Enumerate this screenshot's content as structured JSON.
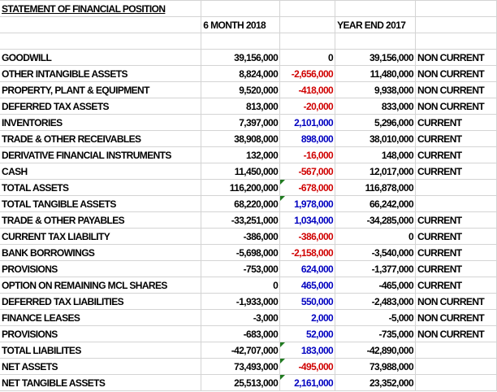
{
  "title": "STATEMENT OF FINANCIAL POSITION",
  "headers": {
    "col_b": "6 MONTH 2018",
    "col_d": "YEAR END 2017"
  },
  "colors": {
    "negative": "#d00000",
    "positive": "#0000c0",
    "comment_marker": "#1f7a1f"
  },
  "rows": [
    {
      "label": "GOODWILL",
      "m2018": "39,156,000",
      "change": "0",
      "change_color": "",
      "y2017": "39,156,000",
      "class": "NON CURRENT",
      "flag": false
    },
    {
      "label": "OTHER INTANGIBLE ASSETS",
      "m2018": "8,824,000",
      "change": "-2,656,000",
      "change_color": "negative",
      "y2017": "11,480,000",
      "class": "NON CURRENT",
      "flag": false
    },
    {
      "label": "PROPERTY, PLANT & EQUIPMENT",
      "m2018": "9,520,000",
      "change": "-418,000",
      "change_color": "negative",
      "y2017": "9,938,000",
      "class": "NON CURRENT",
      "flag": false
    },
    {
      "label": "DEFERRED TAX ASSETS",
      "m2018": "813,000",
      "change": "-20,000",
      "change_color": "negative",
      "y2017": "833,000",
      "class": "NON CURRENT",
      "flag": false
    },
    {
      "label": "INVENTORIES",
      "m2018": "7,397,000",
      "change": "2,101,000",
      "change_color": "positive",
      "y2017": "5,296,000",
      "class": "CURRENT",
      "flag": false
    },
    {
      "label": "TRADE & OTHER RECEIVABLES",
      "m2018": "38,908,000",
      "change": "898,000",
      "change_color": "positive",
      "y2017": "38,010,000",
      "class": "CURRENT",
      "flag": false
    },
    {
      "label": "DERIVATIVE FINANCIAL INSTRUMENTS",
      "m2018": "132,000",
      "change": "-16,000",
      "change_color": "negative",
      "y2017": "148,000",
      "class": "CURRENT",
      "flag": false
    },
    {
      "label": "CASH",
      "m2018": "11,450,000",
      "change": "-567,000",
      "change_color": "negative",
      "y2017": "12,017,000",
      "class": "CURRENT",
      "flag": false
    },
    {
      "label": "TOTAL ASSETS",
      "m2018": "116,200,000",
      "change": "-678,000",
      "change_color": "negative",
      "y2017": "116,878,000",
      "class": "",
      "flag": true
    },
    {
      "label": "TOTAL TANGIBLE ASSETS",
      "m2018": "68,220,000",
      "change": "1,978,000",
      "change_color": "positive",
      "y2017": "66,242,000",
      "class": "",
      "flag": true
    },
    {
      "label": "TRADE & OTHER PAYABLES",
      "m2018": "-33,251,000",
      "change": "1,034,000",
      "change_color": "positive",
      "y2017": "-34,285,000",
      "class": "CURRENT",
      "flag": false
    },
    {
      "label": "CURRENT TAX LIABILITY",
      "m2018": "-386,000",
      "change": "-386,000",
      "change_color": "negative",
      "y2017": "0",
      "class": "CURRENT",
      "flag": false
    },
    {
      "label": "BANK BORROWINGS",
      "m2018": "-5,698,000",
      "change": "-2,158,000",
      "change_color": "negative",
      "y2017": "-3,540,000",
      "class": "CURRENT",
      "flag": false
    },
    {
      "label": "PROVISIONS",
      "m2018": "-753,000",
      "change": "624,000",
      "change_color": "positive",
      "y2017": "-1,377,000",
      "class": "CURRENT",
      "flag": false
    },
    {
      "label": "OPTION ON REMAINING MCL SHARES",
      "m2018": "0",
      "change": "465,000",
      "change_color": "positive",
      "y2017": "-465,000",
      "class": "CURRENT",
      "flag": false
    },
    {
      "label": "DEFERRED TAX LIABILITIES",
      "m2018": "-1,933,000",
      "change": "550,000",
      "change_color": "positive",
      "y2017": "-2,483,000",
      "class": "NON CURRENT",
      "flag": false
    },
    {
      "label": "FINANCE LEASES",
      "m2018": "-3,000",
      "change": "2,000",
      "change_color": "positive",
      "y2017": "-5,000",
      "class": "NON CURRENT",
      "flag": false
    },
    {
      "label": "PROVISIONS",
      "m2018": "-683,000",
      "change": "52,000",
      "change_color": "positive",
      "y2017": "-735,000",
      "class": "NON CURRENT",
      "flag": false
    },
    {
      "label": "TOTAL LIABILITES",
      "m2018": "-42,707,000",
      "change": "183,000",
      "change_color": "positive",
      "y2017": "-42,890,000",
      "class": "",
      "flag": true
    },
    {
      "label": "NET ASSETS",
      "m2018": "73,493,000",
      "change": "-495,000",
      "change_color": "negative",
      "y2017": "73,988,000",
      "class": "",
      "flag": true
    },
    {
      "label": "NET TANGIBLE ASSETS",
      "m2018": "25,513,000",
      "change": "2,161,000",
      "change_color": "positive",
      "y2017": "23,352,000",
      "class": "",
      "flag": true
    }
  ]
}
